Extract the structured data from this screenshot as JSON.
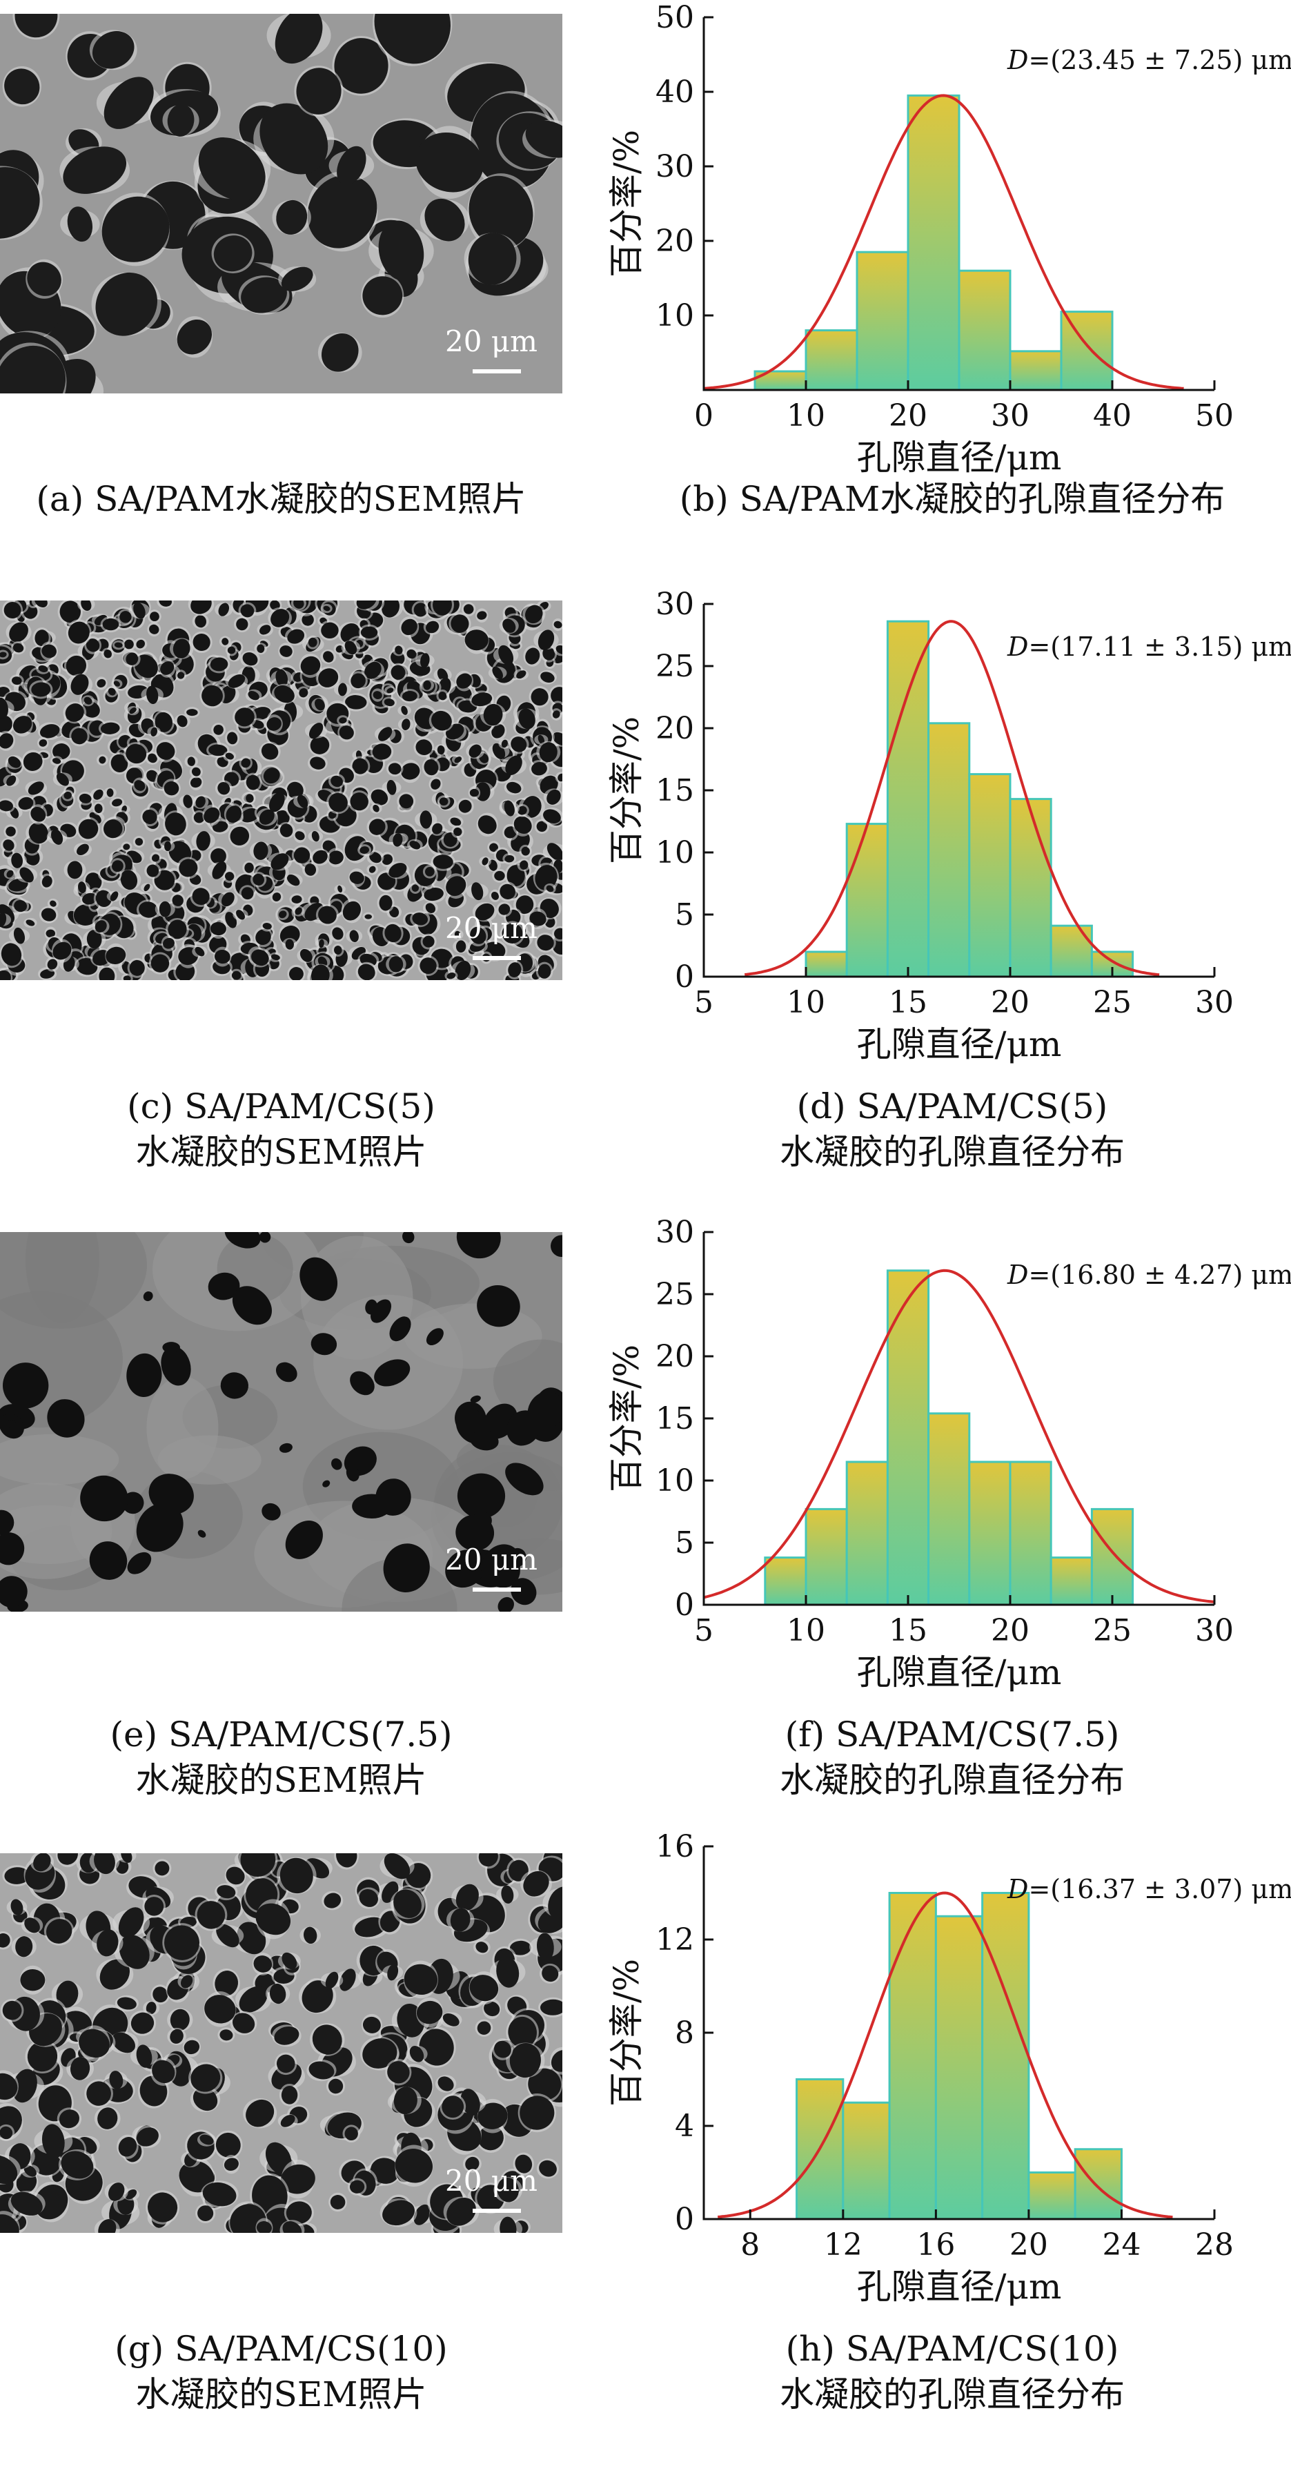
{
  "panels": [
    {
      "sem_caption": [
        "(a) SA/PAM水凝胶的SEM照片"
      ],
      "chart_caption": [
        "(b) SA/PAM水凝胶的孔隙直径分布"
      ],
      "scale_label": "20 μm",
      "sem_style": "coarse"
    },
    {
      "sem_caption": [
        "(c) SA/PAM/CS(5)",
        "水凝胶的SEM照片"
      ],
      "chart_caption": [
        "(d) SA/PAM/CS(5)",
        "水凝胶的孔隙直径分布"
      ],
      "scale_label": "20 μm",
      "sem_style": "fine"
    },
    {
      "sem_caption": [
        "(e) SA/PAM/CS(7.5)",
        "水凝胶的SEM照片"
      ],
      "chart_caption": [
        "(f) SA/PAM/CS(7.5)",
        "水凝胶的孔隙直径分布"
      ],
      "scale_label": "20 μm",
      "sem_style": "smooth"
    },
    {
      "sem_caption": [
        "(g) SA/PAM/CS(10)",
        "水凝胶的SEM照片"
      ],
      "chart_caption": [
        "(h) SA/PAM/CS(10)",
        "水凝胶的孔隙直径分布"
      ],
      "scale_label": "20 μm",
      "sem_style": "medium"
    }
  ],
  "chart_data": [
    {
      "type": "bar",
      "title": "",
      "xlabel": "孔隙直径/μm",
      "ylabel": "百分率/%",
      "xlim": [
        0,
        50
      ],
      "ylim": [
        0,
        50
      ],
      "xticks": [
        0,
        10,
        20,
        30,
        40,
        50
      ],
      "yticks": [
        10,
        20,
        30,
        40,
        50
      ],
      "bin_edges": [
        5,
        10,
        15,
        20,
        25,
        30,
        35,
        40
      ],
      "values": [
        2.5,
        8,
        18.5,
        39.5,
        16,
        5.2,
        10.5
      ],
      "fit": {
        "type": "normal",
        "mean": 23.45,
        "sd": 7.25,
        "peak": 39.5,
        "x_range": [
          0,
          47
        ]
      },
      "annotation_var": "D",
      "annotation": "=(23.45 ± 7.25) μm",
      "colors": {
        "bar_top": "#e0c63c",
        "bar_bottom": "#5ccca0",
        "edge": "#45c6b8",
        "fit": "#d42a2a"
      }
    },
    {
      "type": "bar",
      "title": "",
      "xlabel": "孔隙直径/μm",
      "ylabel": "百分率/%",
      "xlim": [
        5,
        30
      ],
      "ylim": [
        0,
        30
      ],
      "xticks": [
        5,
        10,
        15,
        20,
        25,
        30
      ],
      "yticks": [
        0,
        5,
        10,
        15,
        20,
        25,
        30
      ],
      "bin_edges": [
        10,
        12,
        14,
        16,
        18,
        20,
        22,
        24,
        26
      ],
      "values": [
        2,
        12.3,
        28.6,
        20.4,
        16.3,
        14.3,
        4.1,
        2
      ],
      "fit": {
        "type": "normal",
        "mean": 17.11,
        "sd": 3.15,
        "peak": 28.6,
        "x_range": [
          7,
          27.3
        ]
      },
      "annotation_var": "D",
      "annotation": "=(17.11 ± 3.15) μm",
      "colors": {
        "bar_top": "#e0c63c",
        "bar_bottom": "#5ccca0",
        "edge": "#45c6b8",
        "fit": "#d42a2a"
      }
    },
    {
      "type": "bar",
      "title": "",
      "xlabel": "孔隙直径/μm",
      "ylabel": "百分率/%",
      "xlim": [
        5,
        30
      ],
      "ylim": [
        0,
        30
      ],
      "xticks": [
        5,
        10,
        15,
        20,
        25,
        30
      ],
      "yticks": [
        0,
        5,
        10,
        15,
        20,
        25,
        30
      ],
      "bin_edges": [
        8,
        10,
        12,
        14,
        16,
        18,
        20,
        22,
        24,
        26
      ],
      "values": [
        3.8,
        7.7,
        11.5,
        26.9,
        15.4,
        11.5,
        11.5,
        3.8,
        7.7
      ],
      "fit": {
        "type": "normal",
        "mean": 16.8,
        "sd": 4.27,
        "peak": 26.9,
        "x_range": [
          5,
          30
        ]
      },
      "annotation_var": "D",
      "annotation": "=(16.80 ± 4.27) μm",
      "colors": {
        "bar_top": "#e0c63c",
        "bar_bottom": "#5ccca0",
        "edge": "#45c6b8",
        "fit": "#d42a2a"
      }
    },
    {
      "type": "bar",
      "title": "",
      "xlabel": "孔隙直径/μm",
      "ylabel": "百分率/%",
      "xlim": [
        6,
        28
      ],
      "ylim": [
        0,
        16
      ],
      "xticks": [
        8,
        12,
        16,
        20,
        24,
        28
      ],
      "yticks": [
        0,
        4,
        8,
        12,
        16
      ],
      "bin_edges": [
        10,
        12,
        14,
        16,
        18,
        20,
        22,
        24
      ],
      "values": [
        6,
        5,
        14,
        13,
        14,
        2,
        3
      ],
      "fit": {
        "type": "normal",
        "mean": 16.37,
        "sd": 3.07,
        "peak": 14,
        "x_range": [
          6.6,
          26.2
        ]
      },
      "annotation_var": "D",
      "annotation": "=(16.37 ± 3.07) μm",
      "colors": {
        "bar_top": "#e0c63c",
        "bar_bottom": "#5ccca0",
        "edge": "#45c6b8",
        "fit": "#d42a2a"
      }
    }
  ]
}
